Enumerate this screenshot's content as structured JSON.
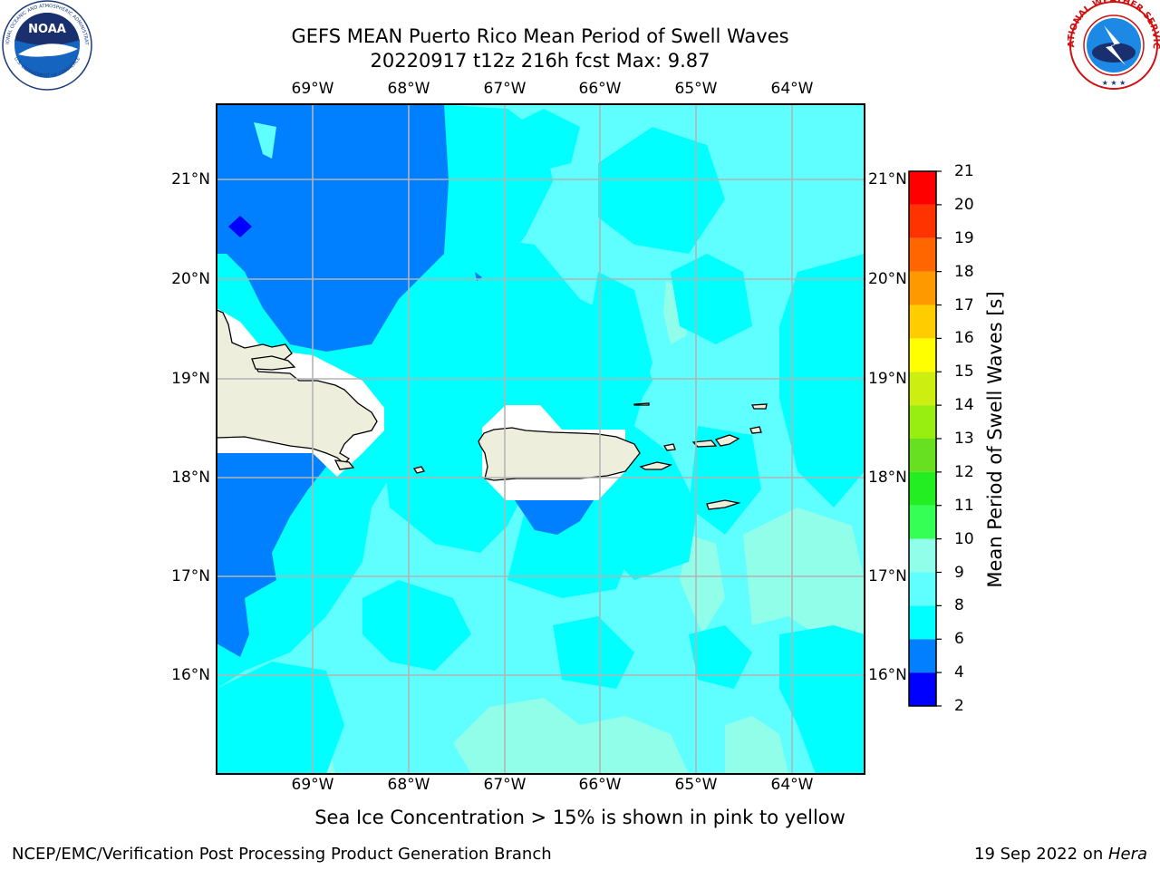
{
  "header": {
    "title_line1": "GEFS MEAN Puerto Rico Mean Period of Swell Waves",
    "title_line2": "20220917 t12z 216h fcst   Max: 9.87"
  },
  "logos": {
    "left_text": "NOAA",
    "left_ring_text": "NATIONAL OCEANIC AND ATMOSPHERIC ADMINISTRATION",
    "left_ring_bottom": "U.S. DEPARTMENT OF COMMERCE",
    "right_ring_text": "NATIONAL WEATHER SERVICE"
  },
  "map": {
    "lon_labels": [
      "69°W",
      "68°W",
      "67°W",
      "66°W",
      "65°W",
      "64°W"
    ],
    "lat_labels": [
      "21°N",
      "20°N",
      "19°N",
      "18°N",
      "17°N",
      "16°N"
    ],
    "colors": {
      "deep_blue": "#0000ff",
      "blue": "#0080ff",
      "cyan": "#00ffff",
      "light_cyan": "#60ffff",
      "pale_aqua": "#90fee8",
      "land": "#eeeedc",
      "no_data": "#ffffff",
      "grid": "#b4b4b4"
    }
  },
  "colorbar": {
    "label": "Mean Period of Swell Waves [s]",
    "ticks": [
      "21",
      "20",
      "19",
      "18",
      "17",
      "16",
      "15",
      "14",
      "13",
      "12",
      "11",
      "10",
      "9",
      "8",
      "6",
      "4",
      "2"
    ],
    "bands": [
      {
        "from": "2",
        "to": "4",
        "color": "#0000ff"
      },
      {
        "from": "4",
        "to": "6",
        "color": "#0080ff"
      },
      {
        "from": "6",
        "to": "8",
        "color": "#00ffff"
      },
      {
        "from": "8",
        "to": "9",
        "color": "#60ffff"
      },
      {
        "from": "9",
        "to": "10",
        "color": "#90fee8"
      },
      {
        "from": "10",
        "to": "11",
        "color": "#33ff55"
      },
      {
        "from": "11",
        "to": "12",
        "color": "#22ee22"
      },
      {
        "from": "12",
        "to": "13",
        "color": "#66e020"
      },
      {
        "from": "13",
        "to": "14",
        "color": "#99ee11"
      },
      {
        "from": "14",
        "to": "15",
        "color": "#ccee11"
      },
      {
        "from": "15",
        "to": "16",
        "color": "#ffff00"
      },
      {
        "from": "16",
        "to": "17",
        "color": "#ffcc00"
      },
      {
        "from": "17",
        "to": "18",
        "color": "#ff9900"
      },
      {
        "from": "18",
        "to": "19",
        "color": "#ff6600"
      },
      {
        "from": "19",
        "to": "20",
        "color": "#ff3300"
      },
      {
        "from": "20",
        "to": "21",
        "color": "#ff0000"
      }
    ]
  },
  "notes": {
    "ice": "Sea Ice Concentration > 15% is shown in pink to yellow"
  },
  "footer": {
    "left": "NCEP/EMC/Verification Post Processing Product Generation Branch",
    "right_date": "19 Sep 2022 on ",
    "right_host": "Hera"
  }
}
